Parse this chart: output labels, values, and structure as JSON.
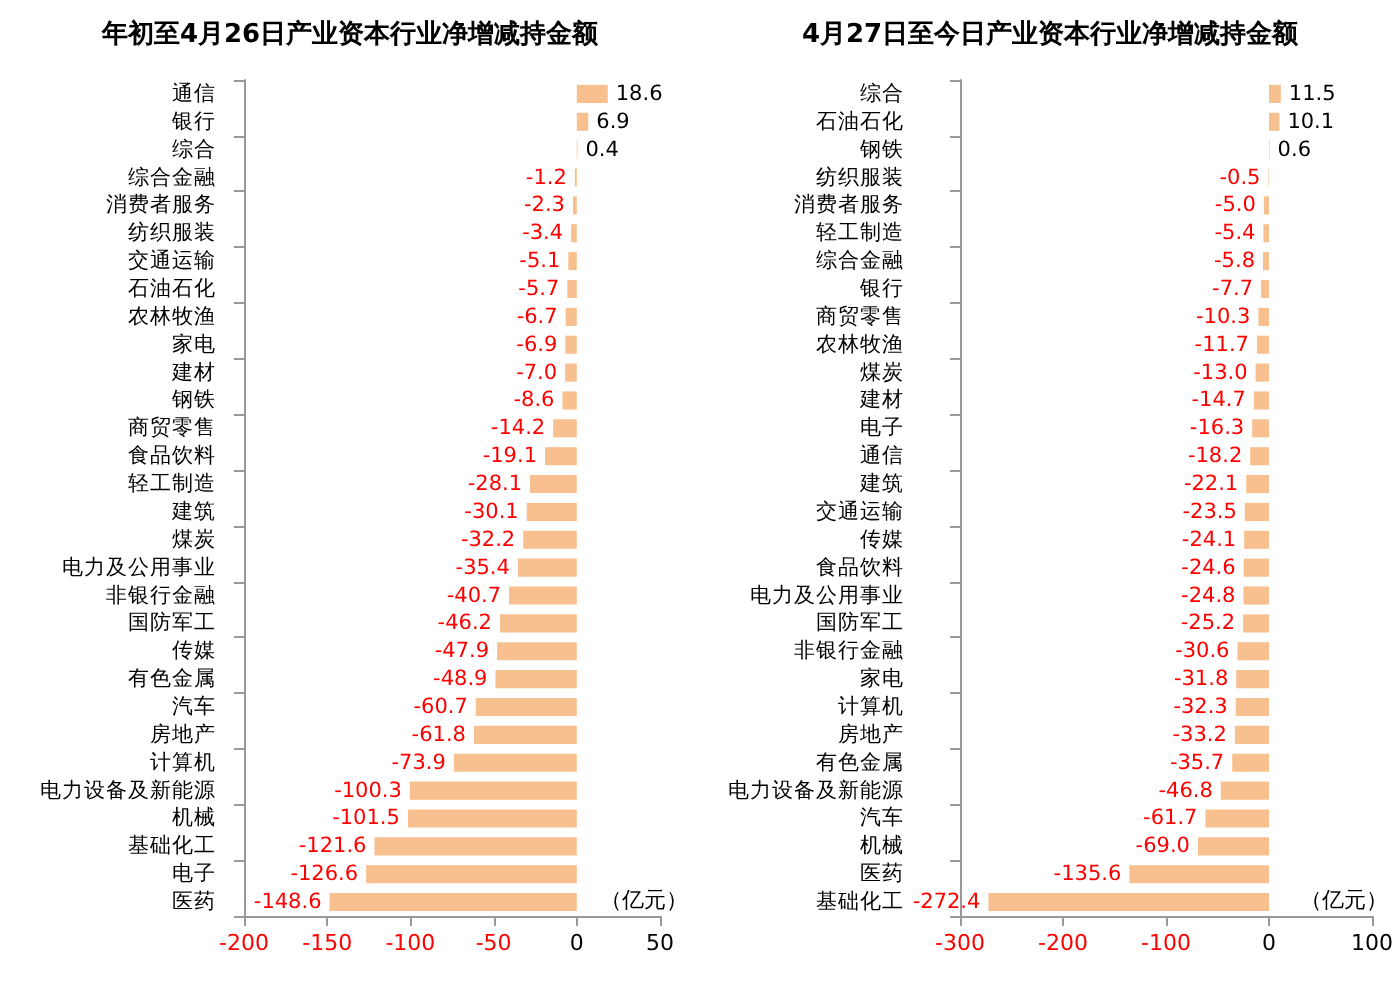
{
  "chart_data": [
    {
      "type": "bar",
      "orientation": "horizontal",
      "title": "年初至4月26日产业资本行业净增减持金额",
      "categories": [
        "通信",
        "银行",
        "综合",
        "综合金融",
        "消费者服务",
        "纺织服装",
        "交通运输",
        "石油石化",
        "农林牧渔",
        "家电",
        "建材",
        "钢铁",
        "商贸零售",
        "食品饮料",
        "轻工制造",
        "建筑",
        "煤炭",
        "电力及公用事业",
        "非银行金融",
        "国防军工",
        "传媒",
        "有色金属",
        "汽车",
        "房地产",
        "计算机",
        "电力设备及新能源",
        "机械",
        "基础化工",
        "电子",
        "医药"
      ],
      "values": [
        18.6,
        6.9,
        0.4,
        -1.2,
        -2.3,
        -3.4,
        -5.1,
        -5.7,
        -6.7,
        -6.9,
        -7.0,
        -8.6,
        -14.2,
        -19.1,
        -28.1,
        -30.1,
        -32.2,
        -35.4,
        -40.7,
        -46.2,
        -47.9,
        -48.9,
        -60.7,
        -61.8,
        -73.9,
        -100.3,
        -101.5,
        -121.6,
        -126.6,
        -148.6
      ],
      "value_labels": [
        "18.6",
        "6.9",
        "0.4",
        "-1.2",
        "-2.3",
        "-3.4",
        "-5.1",
        "-5.7",
        "-6.7",
        "-6.9",
        "-7.0",
        "-8.6",
        "-14.2",
        "-19.1",
        "-28.1",
        "-30.1",
        "-32.2",
        "-35.4",
        "-40.7",
        "-46.2",
        "-47.9",
        "-48.9",
        "-60.7",
        "-61.8",
        "-73.9",
        "-100.3",
        "-101.5",
        "-121.6",
        "-126.6",
        "-148.6"
      ],
      "color": "#f9c08f",
      "xlim": [
        -200,
        50
      ],
      "xticks": [
        -200,
        -150,
        -100,
        -50,
        0,
        50
      ],
      "annotations": [
        "（亿元）"
      ]
    },
    {
      "type": "bar",
      "orientation": "horizontal",
      "title": "4月27日至今日产业资本行业净增减持金额",
      "categories": [
        "综合",
        "石油石化",
        "钢铁",
        "纺织服装",
        "消费者服务",
        "轻工制造",
        "综合金融",
        "银行",
        "商贸零售",
        "农林牧渔",
        "煤炭",
        "建材",
        "电子",
        "通信",
        "建筑",
        "交通运输",
        "传媒",
        "食品饮料",
        "电力及公用事业",
        "国防军工",
        "非银行金融",
        "家电",
        "计算机",
        "房地产",
        "有色金属",
        "电力设备及新能源",
        "汽车",
        "机械",
        "医药",
        "基础化工"
      ],
      "values": [
        11.5,
        10.1,
        0.6,
        -0.5,
        -5.0,
        -5.4,
        -5.8,
        -7.7,
        -10.3,
        -11.7,
        -13.0,
        -14.7,
        -16.3,
        -18.2,
        -22.1,
        -23.5,
        -24.1,
        -24.6,
        -24.8,
        -25.2,
        -30.6,
        -31.8,
        -32.3,
        -33.2,
        -35.7,
        -46.8,
        -61.7,
        -69.0,
        -135.6,
        -272.4
      ],
      "value_labels": [
        "11.5",
        "10.1",
        "0.6",
        "-0.5",
        "-5.0",
        "-5.4",
        "-5.8",
        "-7.7",
        "-10.3",
        "-11.7",
        "-13.0",
        "-14.7",
        "-16.3",
        "-18.2",
        "-22.1",
        "-23.5",
        "-24.1",
        "-24.6",
        "-24.8",
        "-25.2",
        "-30.6",
        "-31.8",
        "-32.3",
        "-33.2",
        "-35.7",
        "-46.8",
        "-61.7",
        "-69.0",
        "-135.6",
        "-272.4"
      ],
      "color": "#f9c08f",
      "xlim": [
        -300,
        100
      ],
      "xticks": [
        -300,
        -200,
        -100,
        0,
        100
      ],
      "annotations": [
        "（亿元）"
      ]
    }
  ]
}
